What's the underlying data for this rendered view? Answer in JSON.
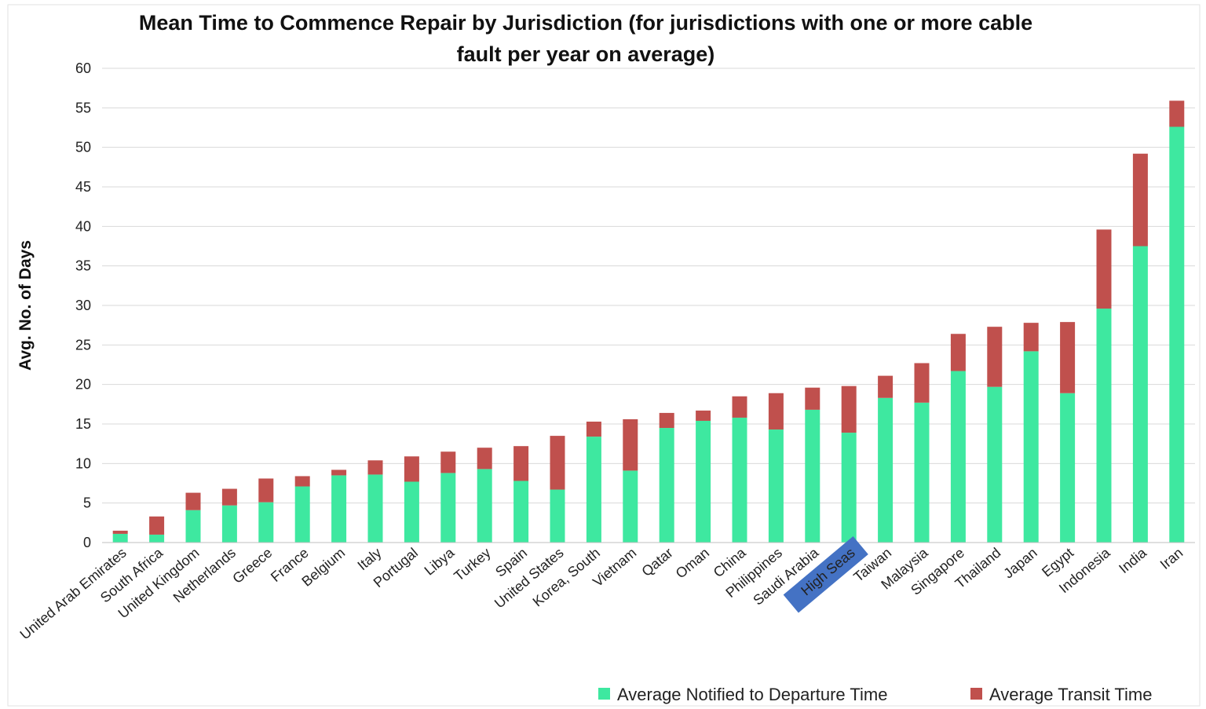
{
  "chart_data": {
    "type": "bar",
    "stacked": true,
    "title_line1": "Mean Time to Commence Repair by Jurisdiction (for  jurisdictions with one or more cable",
    "title_line2": "fault per year on average)",
    "xlabel": "",
    "ylabel": "Avg. No. of Days",
    "ylim": [
      0,
      60
    ],
    "yticks": [
      0,
      5,
      10,
      15,
      20,
      25,
      30,
      35,
      40,
      45,
      50,
      55,
      60
    ],
    "grid": true,
    "legend_position": "bottom-right",
    "highlighted_category": "High Seas",
    "highlight_color": "#4472c4",
    "categories": [
      "United Arab Emirates",
      "South Africa",
      "United Kingdom",
      "Netherlands",
      "Greece",
      "France",
      "Belgium",
      "Italy",
      "Portugal",
      "Libya",
      "Turkey",
      "Spain",
      "United States",
      "Korea, South",
      "Vietnam",
      "Qatar",
      "Oman",
      "China",
      "Philippines",
      "Saudi Arabia",
      "High Seas",
      "Taiwan",
      "Malaysia",
      "Singapore",
      "Thailand",
      "Japan",
      "Egypt",
      "Indonesia",
      "India",
      "Iran"
    ],
    "series": [
      {
        "name": "Average Notified to Departure Time",
        "color": "#3ee8a0",
        "values": [
          1.1,
          1.0,
          4.1,
          4.7,
          5.1,
          7.1,
          8.5,
          8.6,
          7.7,
          8.8,
          9.3,
          7.8,
          6.7,
          13.4,
          9.1,
          14.5,
          15.4,
          15.8,
          14.3,
          16.8,
          13.9,
          18.3,
          17.7,
          21.7,
          19.7,
          24.2,
          18.9,
          29.6,
          37.5,
          52.6
        ]
      },
      {
        "name": "Average Transit Time",
        "color": "#c0504d",
        "values": [
          0.4,
          2.3,
          2.2,
          2.1,
          3.0,
          1.3,
          0.7,
          1.8,
          3.2,
          2.7,
          2.7,
          4.4,
          6.8,
          1.9,
          6.5,
          1.9,
          1.3,
          2.7,
          4.6,
          2.8,
          5.9,
          2.8,
          5.0,
          4.7,
          7.6,
          3.6,
          9.0,
          10.0,
          11.7,
          3.3
        ]
      }
    ]
  }
}
